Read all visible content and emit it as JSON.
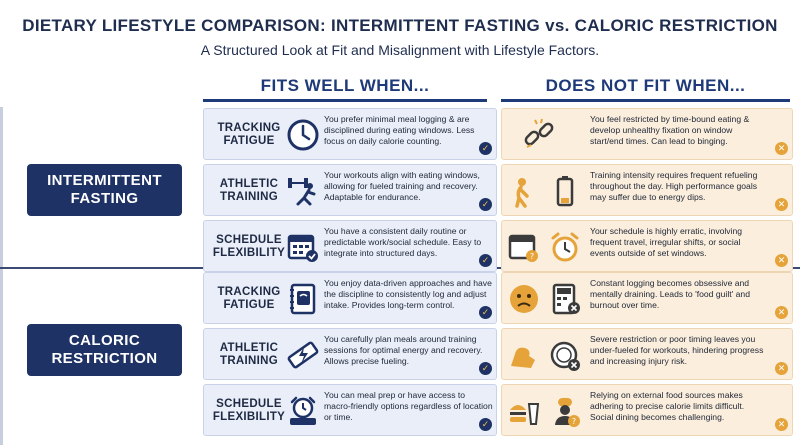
{
  "title": "DIETARY LIFESTYLE COMPARISON: INTERMITTENT FASTING vs. CALORIC RESTRICTION",
  "subtitle": "A Structured Look at Fit and Misalignment with Lifestyle Factors.",
  "columns": {
    "fits": "FITS WELL WHEN...",
    "not_fits": "DOES NOT FIT WHEN..."
  },
  "groups": [
    {
      "label_line1": "INTERMITTENT",
      "label_line2": "FASTING",
      "rows": [
        {
          "factor_line1": "TRACKING",
          "factor_line2": "FATIGUE",
          "fit_icon": "clock-icon",
          "fit_text": "You prefer minimal meal logging & are disciplined during eating windows. Less focus on daily calorie counting.",
          "no_icon": "broken-chain-icon",
          "no_text": "You feel restricted by time-bound eating & develop unhealthy fixation on window start/end times. Can lead to binging."
        },
        {
          "factor_line1": "ATHLETIC",
          "factor_line2": "TRAINING",
          "fit_icon": "runner-dumbbell-icon",
          "fit_text": "Your workouts align with eating windows, allowing for fueled training and recovery. Adaptable for endurance.",
          "no_icon": "tired-person-low-battery-icon",
          "no_text": "Training intensity requires frequent refueling throughout the day. High performance goals may suffer due to energy dips."
        },
        {
          "factor_line1": "SCHEDULE",
          "factor_line2": "FLEXIBILITY",
          "fit_icon": "calendar-check-icon",
          "fit_text": "You have a consistent daily routine or predictable work/social schedule. Easy to integrate into structured days.",
          "no_icon": "calendar-alarm-icon",
          "no_text": "Your schedule is highly erratic, involving frequent travel, irregular shifts, or social events outside of set windows."
        }
      ]
    },
    {
      "label_line1": "CALORIC",
      "label_line2": "RESTRICTION",
      "rows": [
        {
          "factor_line1": "TRACKING",
          "factor_line2": "FATIGUE",
          "fit_icon": "notebook-scale-icon",
          "fit_text": "You enjoy data-driven approaches and have the discipline to consistently log and adjust intake. Provides long-term control.",
          "no_icon": "stressed-face-calculator-icon",
          "no_text": "Constant logging becomes obsessive and mentally draining. Leads to 'food guilt' and burnout over time."
        },
        {
          "factor_line1": "ATHLETIC",
          "factor_line2": "TRAINING",
          "fit_icon": "energy-bar-icon",
          "fit_text": "You carefully plan meals around training sessions for optimal energy and recovery. Allows precise fueling.",
          "no_icon": "weak-arm-plate-icon",
          "no_text": "Severe restriction or poor timing leaves you under-fueled for workouts, hindering progress and increasing injury risk."
        },
        {
          "factor_line1": "SCHEDULE",
          "factor_line2": "FLEXIBILITY",
          "fit_icon": "meal-prep-alarm-icon",
          "fit_text": "You can meal prep or have access to macro-friendly options regardless of location or time.",
          "no_icon": "fast-food-chef-icon",
          "no_text": "Relying on external food sources makes adhering to precise calorie limits difficult. Social dining becomes challenging."
        }
      ]
    }
  ],
  "badges": {
    "check": "✓",
    "cross": "✕"
  },
  "colors": {
    "navy": "#1e3266",
    "fit_bg": "#e9eef9",
    "nofit_bg": "#fbeedc",
    "accent": "#e5a33a"
  }
}
